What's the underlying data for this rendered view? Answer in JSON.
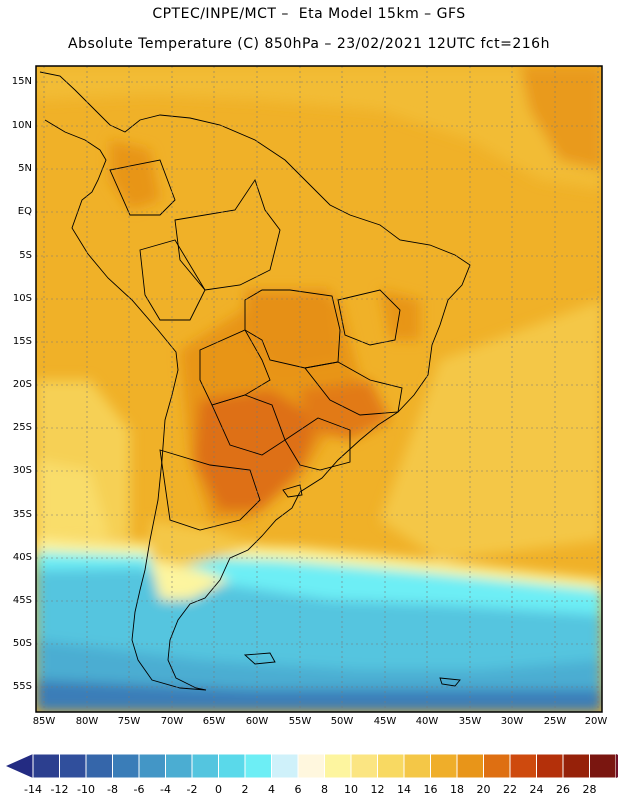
{
  "header": {
    "line1": "CPTEC/INPE/MCT –  Eta Model 15km – GFS",
    "line2": "Absolute Temperature (C) 850hPa – 23/02/2021 12UTC fct=216h"
  },
  "map": {
    "lat_labels": [
      "15N",
      "10N",
      "5N",
      "EQ",
      "5S",
      "10S",
      "15S",
      "20S",
      "25S",
      "30S",
      "35S",
      "40S",
      "45S",
      "50S",
      "55S"
    ],
    "lon_labels": [
      "85W",
      "80W",
      "75W",
      "70W",
      "65W",
      "60W",
      "55W",
      "50W",
      "45W",
      "40W",
      "35W",
      "30W",
      "25W",
      "20W"
    ],
    "gridlines": true
  },
  "colorbar": {
    "labels": [
      "-14",
      "-12",
      "-10",
      "-8",
      "-6",
      "-4",
      "-2",
      "0",
      "2",
      "4",
      "6",
      "8",
      "10",
      "12",
      "14",
      "16",
      "18",
      "20",
      "22",
      "24",
      "26",
      "28"
    ],
    "colors": [
      "#2c3f8f",
      "#304f9c",
      "#3566aa",
      "#3a7db8",
      "#4396c6",
      "#4badd2",
      "#54c5df",
      "#5ad9ea",
      "#6deef5",
      "#cff1fa",
      "#fff7de",
      "#fdf59f",
      "#fbe582",
      "#f8d962",
      "#f4c747",
      "#efae2a",
      "#e89519",
      "#de6f12",
      "#ce4a0e",
      "#b4300a",
      "#962109",
      "#7a1610"
    ],
    "low_end_color": "#232b82",
    "high_end_color": "#6e0f28"
  }
}
